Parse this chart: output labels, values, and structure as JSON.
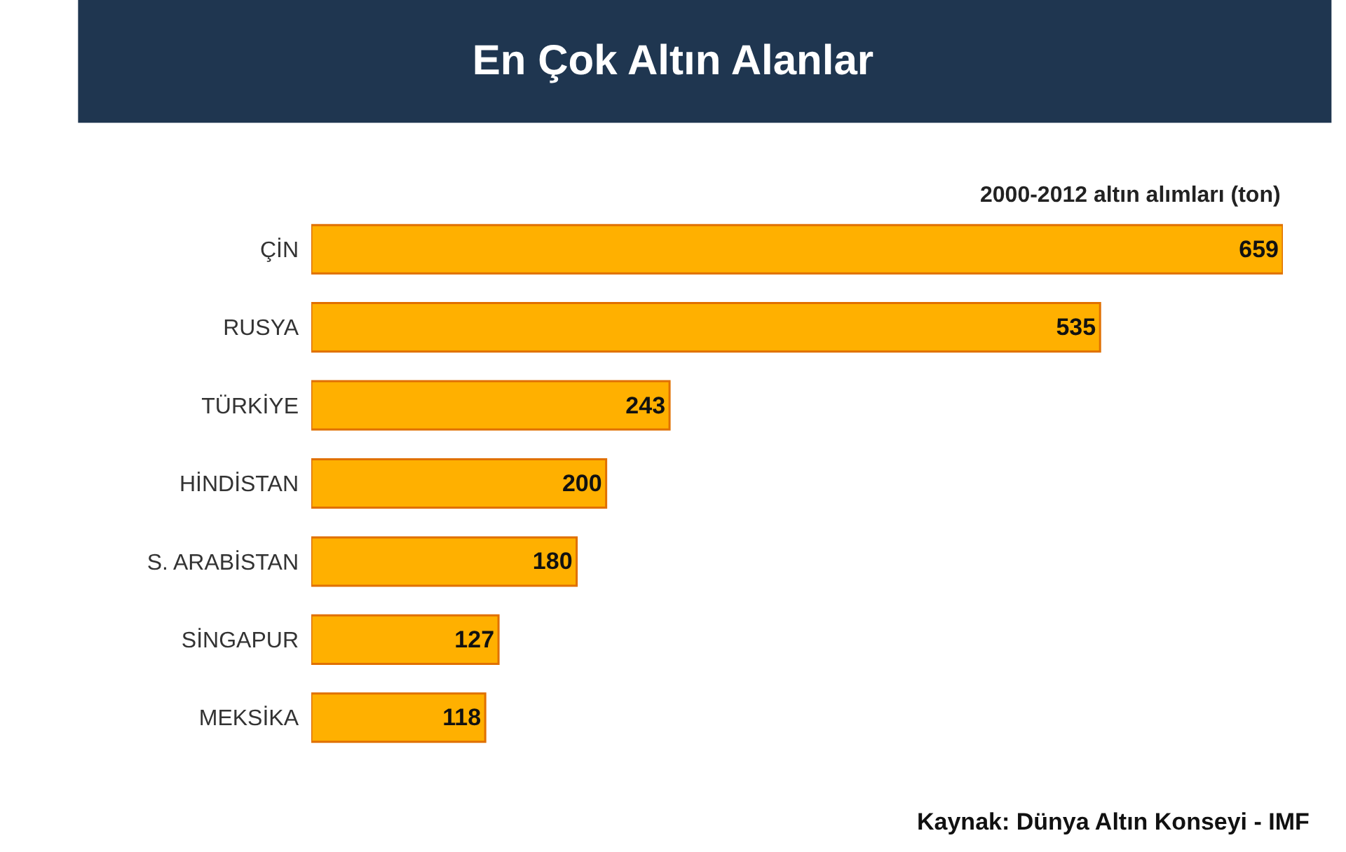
{
  "chart_data": {
    "type": "bar",
    "orientation": "horizontal",
    "title": "En Çok Altın Alanlar",
    "subtitle": "2000-2012 altın alımları (ton)",
    "categories": [
      "ÇİN",
      "RUSYA",
      "TÜRKİYE",
      "HİNDİSTAN",
      "S. ARABİSTAN",
      "SİNGAPUR",
      "MEKSİKA"
    ],
    "values": [
      659,
      535,
      243,
      200,
      180,
      127,
      118
    ],
    "color": "#ffb000",
    "data_labels": true,
    "annotations": [
      "Kaynak: Dünya Altın Konseyi - IMF"
    ]
  }
}
